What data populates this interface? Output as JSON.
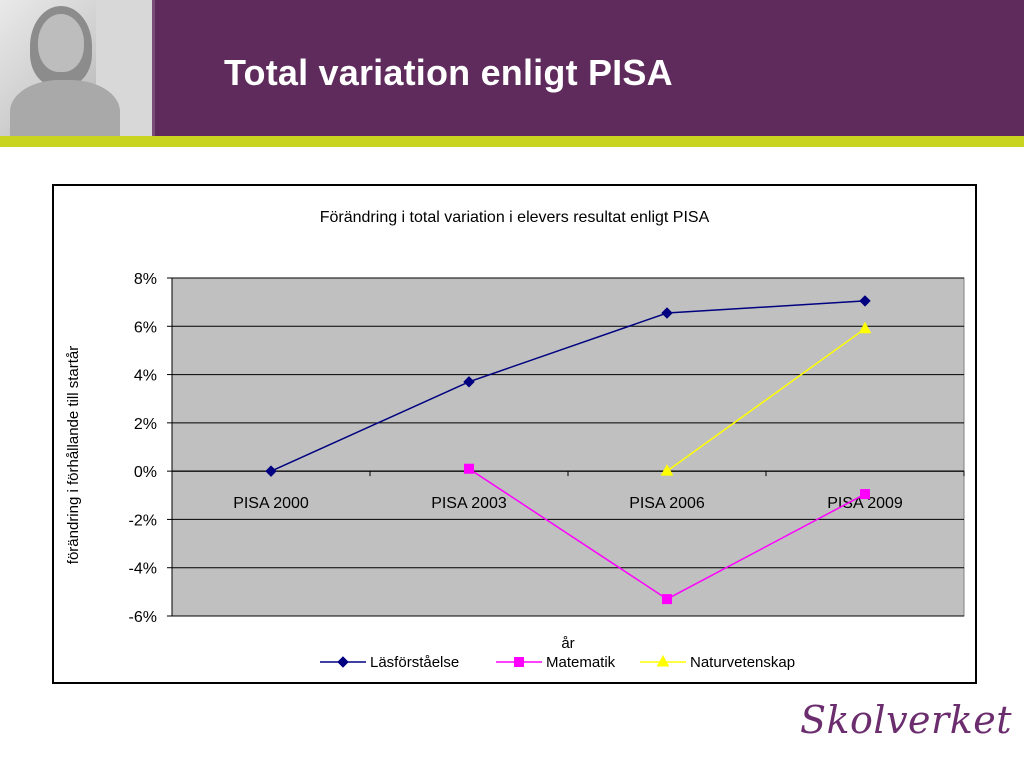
{
  "slide": {
    "title": "Total variation enligt PISA"
  },
  "logo": {
    "text": "Skolverket"
  },
  "colors": {
    "header": "#5e2b5c",
    "accent_line": "#c8d41f",
    "plot_area": "#c0c0c0"
  },
  "chart_data": {
    "type": "line",
    "title": "Förändring i total variation i elevers resultat enligt PISA",
    "xlabel": "år",
    "ylabel": "förändring i förhållande till startår",
    "categories": [
      "PISA 2000",
      "PISA 2003",
      "PISA 2006",
      "PISA 2009"
    ],
    "ylim": [
      -0.06,
      0.08
    ],
    "yticks": [
      "8%",
      "6%",
      "4%",
      "2%",
      "0%",
      "-2%",
      "-4%",
      "-6%"
    ],
    "grid": true,
    "legend_position": "bottom",
    "series": [
      {
        "name": "Läsförståelse",
        "color": "#000080",
        "marker": "diamond",
        "values": [
          0.0,
          0.037,
          0.0655,
          0.0705
        ]
      },
      {
        "name": "Matematik",
        "color": "#ff00ff",
        "marker": "square",
        "values": [
          null,
          0.001,
          -0.053,
          -0.0095
        ]
      },
      {
        "name": "Naturvetenskap",
        "color": "#ffff00",
        "marker": "triangle",
        "values": [
          null,
          null,
          0.0,
          0.059
        ]
      }
    ]
  }
}
